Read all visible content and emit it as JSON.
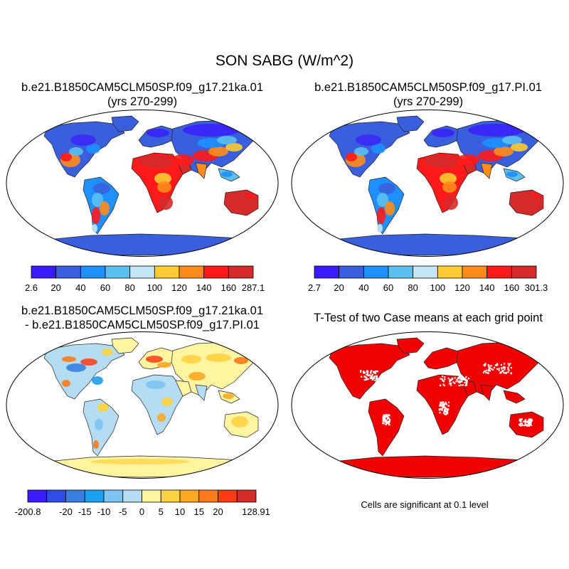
{
  "title": "SON SABG (W/m^2)",
  "panels": [
    {
      "id": "case1",
      "title_lines": [
        "b.e21.B1850CAM5CLM50SP.f09_g17.21ka.01",
        "(yrs 270-299)"
      ],
      "colorbar": {
        "colors": [
          "#3a1aff",
          "#3a5fdc",
          "#1e90ff",
          "#5bc0f0",
          "#c6e6f5",
          "#ffcc33",
          "#ff8c1a",
          "#ff1a1a",
          "#d42a2a"
        ],
        "labels": [
          "2.6",
          "20",
          "40",
          "60",
          "80",
          "100",
          "120",
          "140",
          "160",
          "287.1"
        ]
      }
    },
    {
      "id": "case2",
      "title_lines": [
        "b.e21.B1850CAM5CLM50SP.f09_g17.PI.01",
        "(yrs 270-299)"
      ],
      "colorbar": {
        "colors": [
          "#3a1aff",
          "#3a5fdc",
          "#1e90ff",
          "#5bc0f0",
          "#c6e6f5",
          "#ffcc33",
          "#ff8c1a",
          "#ff1a1a",
          "#d42a2a"
        ],
        "labels": [
          "2.7",
          "20",
          "40",
          "60",
          "80",
          "100",
          "120",
          "140",
          "160",
          "301.3"
        ]
      }
    },
    {
      "id": "diff",
      "title_lines": [
        "b.e21.B1850CAM5CLM50SP.f09_g17.21ka.01",
        "- b.e21.B1850CAM5CLM50SP.f09_g17.PI.01"
      ],
      "colorbar": {
        "colors": [
          "#3a1aff",
          "#2f4de6",
          "#3a7fe0",
          "#1ea0f0",
          "#7cc4f2",
          "#b4dcf2",
          "#fff5a0",
          "#ffd23f",
          "#ffa820",
          "#ff7a1a",
          "#ff3a14",
          "#d42a2a"
        ],
        "labels": [
          "-200.8",
          "",
          "-20",
          "-15",
          "-10",
          "-5",
          "0",
          "5",
          "10",
          "15",
          "20",
          "",
          "128.91"
        ]
      }
    },
    {
      "id": "ttest",
      "title_lines": [
        "T-Test of two Case means at each grid point"
      ],
      "note": "Cells are significant at 0.1 level"
    }
  ]
}
